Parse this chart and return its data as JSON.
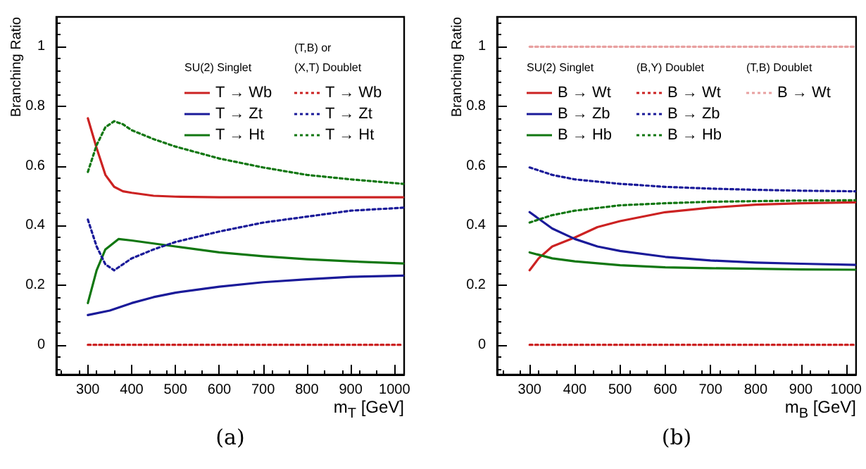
{
  "chart_data": [
    {
      "type": "line",
      "title": "(a)",
      "xlabel": "m$_{T}$ [GeV]",
      "ylabel": "Branching Ratio",
      "xlim": [
        228,
        1022
      ],
      "xticks": [
        300,
        400,
        500,
        600,
        700,
        800,
        900,
        1000
      ],
      "ylim": [
        -0.1,
        1.1
      ],
      "yticks": [
        0,
        0.2,
        0.4,
        0.6,
        0.8,
        1
      ],
      "grid": false,
      "legend": "top right",
      "marker": "none",
      "annotations": [
        "SU(2) Singlet",
        "(T,B) or\n(X,T) Doublet"
      ],
      "series": [
        {
          "name": "T → Wb",
          "color": "#cc2222",
          "line_style": "solid",
          "x": [
            300,
            320,
            340,
            360,
            380,
            400,
            450,
            500,
            600,
            700,
            800,
            900,
            1020
          ],
          "values": [
            0.76,
            0.66,
            0.57,
            0.53,
            0.515,
            0.51,
            0.5,
            0.497,
            0.495,
            0.495,
            0.495,
            0.495,
            0.495
          ]
        },
        {
          "name": "T → Zt",
          "color": "#1a1a99",
          "line_style": "solid",
          "x": [
            300,
            350,
            400,
            450,
            500,
            600,
            700,
            800,
            900,
            1020
          ],
          "values": [
            0.1,
            0.115,
            0.14,
            0.16,
            0.175,
            0.195,
            0.21,
            0.22,
            0.228,
            0.232
          ]
        },
        {
          "name": "T → Ht",
          "color": "#117711",
          "line_style": "solid",
          "x": [
            300,
            320,
            340,
            370,
            400,
            500,
            600,
            700,
            800,
            900,
            1020
          ],
          "values": [
            0.14,
            0.25,
            0.32,
            0.355,
            0.35,
            0.33,
            0.31,
            0.297,
            0.287,
            0.28,
            0.273
          ]
        },
        {
          "name": "T → Wb",
          "color": "#cc2222",
          "line_style": "dotted",
          "x": [
            300,
            1020
          ],
          "values": [
            0,
            0
          ]
        },
        {
          "name": "T → Zt",
          "color": "#1a1a99",
          "line_style": "dotted",
          "x": [
            300,
            320,
            340,
            360,
            380,
            400,
            450,
            500,
            600,
            700,
            800,
            900,
            1020
          ],
          "values": [
            0.42,
            0.33,
            0.27,
            0.25,
            0.27,
            0.29,
            0.32,
            0.345,
            0.38,
            0.41,
            0.43,
            0.45,
            0.46
          ]
        },
        {
          "name": "T → Ht",
          "color": "#117711",
          "line_style": "dotted",
          "x": [
            300,
            320,
            340,
            360,
            380,
            400,
            450,
            500,
            600,
            700,
            800,
            900,
            1020
          ],
          "values": [
            0.58,
            0.67,
            0.73,
            0.75,
            0.74,
            0.72,
            0.69,
            0.665,
            0.625,
            0.595,
            0.57,
            0.555,
            0.54
          ]
        }
      ]
    },
    {
      "type": "line",
      "title": "(b)",
      "xlabel": "m$_{B}$ [GeV]",
      "ylabel": "Branching Ratio",
      "xlim": [
        228,
        1022
      ],
      "xticks": [
        300,
        400,
        500,
        600,
        700,
        800,
        900,
        1000
      ],
      "ylim": [
        -0.1,
        1.1
      ],
      "yticks": [
        0,
        0.2,
        0.4,
        0.6,
        0.8,
        1
      ],
      "grid": false,
      "legend": "top right",
      "marker": "none",
      "annotations": [
        "SU(2) Singlet",
        "(B,Y) Doublet",
        "(T,B) Doublet"
      ],
      "series": [
        {
          "name": "B → Wt",
          "color": "#cc2222",
          "line_style": "solid",
          "x": [
            300,
            320,
            350,
            400,
            450,
            500,
            600,
            700,
            800,
            900,
            1020
          ],
          "values": [
            0.25,
            0.29,
            0.33,
            0.36,
            0.395,
            0.415,
            0.445,
            0.46,
            0.47,
            0.475,
            0.478
          ]
        },
        {
          "name": "B → Zb",
          "color": "#1a1a99",
          "line_style": "solid",
          "x": [
            300,
            350,
            400,
            450,
            500,
            600,
            700,
            800,
            900,
            1020
          ],
          "values": [
            0.445,
            0.39,
            0.355,
            0.33,
            0.315,
            0.295,
            0.283,
            0.276,
            0.272,
            0.268
          ]
        },
        {
          "name": "B → Hb",
          "color": "#117711",
          "line_style": "solid",
          "x": [
            300,
            350,
            400,
            500,
            600,
            700,
            800,
            900,
            1020
          ],
          "values": [
            0.31,
            0.29,
            0.28,
            0.267,
            0.26,
            0.257,
            0.255,
            0.253,
            0.252
          ]
        },
        {
          "name": "B → Wt",
          "color": "#cc2222",
          "line_style": "dotted",
          "x": [
            300,
            1020
          ],
          "values": [
            0,
            0
          ]
        },
        {
          "name": "B → Zb",
          "color": "#1a1a99",
          "line_style": "dotted",
          "x": [
            300,
            350,
            400,
            500,
            600,
            700,
            800,
            900,
            1020
          ],
          "values": [
            0.595,
            0.57,
            0.555,
            0.54,
            0.53,
            0.524,
            0.52,
            0.517,
            0.515
          ]
        },
        {
          "name": "B → Hb",
          "color": "#117711",
          "line_style": "dotted",
          "x": [
            300,
            350,
            400,
            500,
            600,
            700,
            800,
            900,
            1020
          ],
          "values": [
            0.41,
            0.435,
            0.45,
            0.468,
            0.475,
            0.48,
            0.482,
            0.484,
            0.485
          ]
        },
        {
          "name": "B → Wt",
          "color": "#e8a0a0",
          "line_style": "dotted",
          "x": [
            300,
            1020
          ],
          "values": [
            1,
            1
          ]
        }
      ]
    }
  ]
}
